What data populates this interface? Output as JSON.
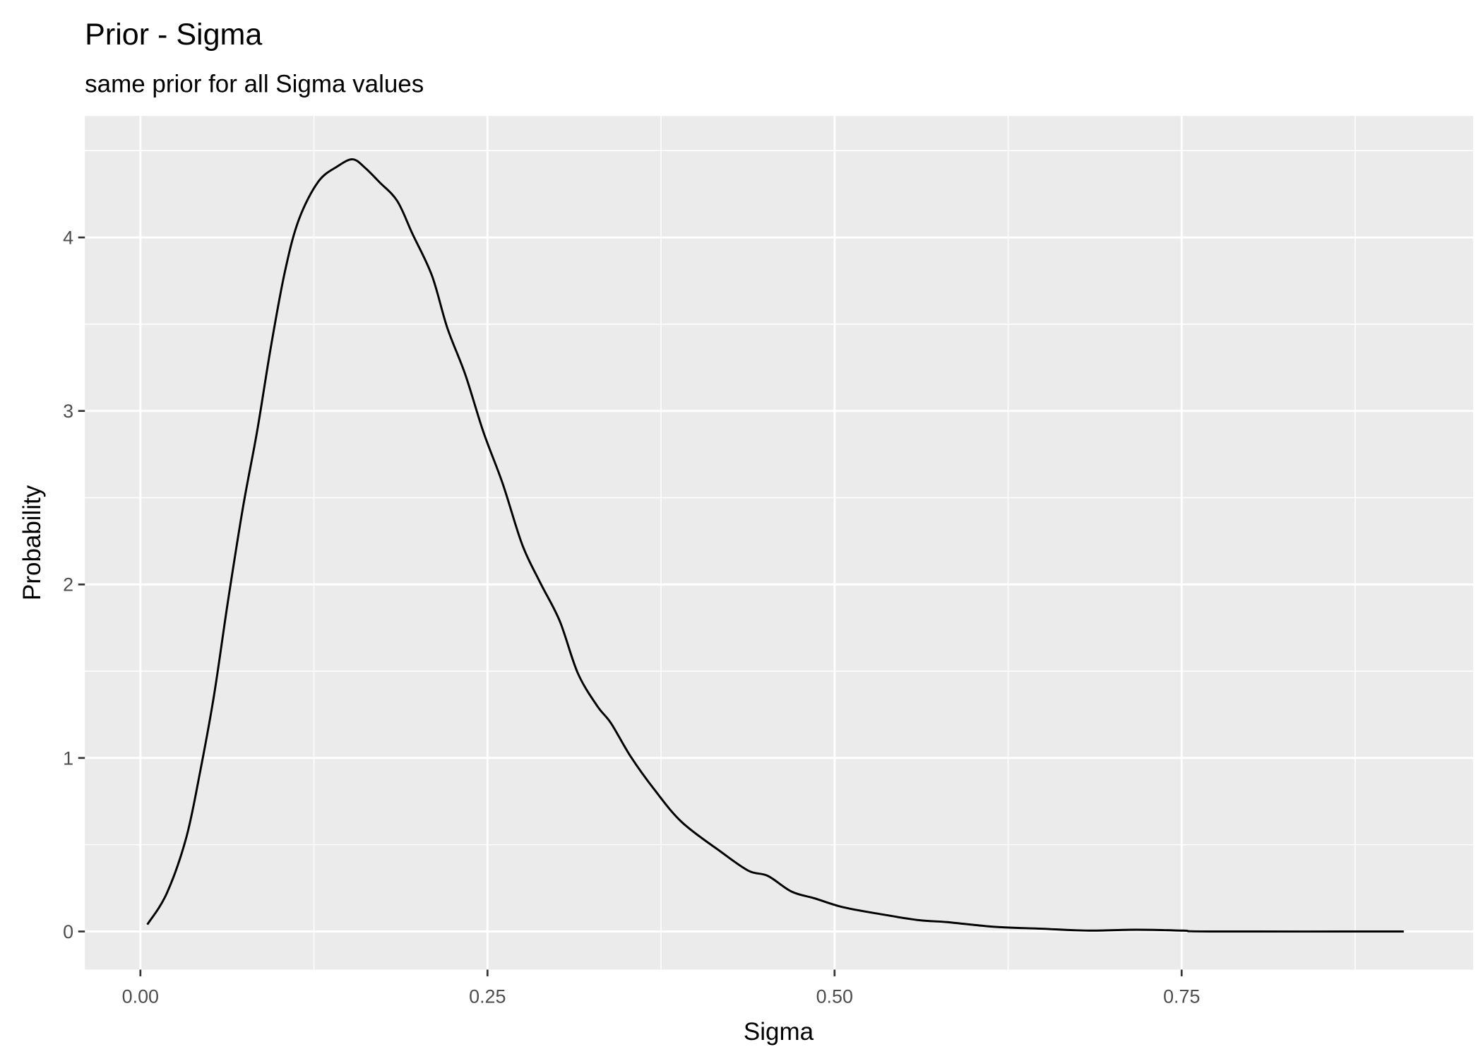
{
  "chart_data": {
    "type": "line",
    "title": "Prior - Sigma",
    "subtitle": "same prior for all Sigma values",
    "xlabel": "Sigma",
    "ylabel": "Probability",
    "xlim": [
      -0.04,
      0.96
    ],
    "ylim": [
      -0.22,
      4.7
    ],
    "x_ticks": [
      0,
      0.25,
      0.5,
      0.75
    ],
    "x_tick_labels": [
      "0.00",
      "0.25",
      "0.50",
      "0.75"
    ],
    "y_ticks": [
      0,
      1,
      2,
      3,
      4
    ],
    "y_tick_labels": [
      "0",
      "1",
      "2",
      "3",
      "4"
    ],
    "grid": true,
    "colors": {
      "panel": "#ebebeb",
      "grid": "#ffffff",
      "line": "#000000"
    },
    "series": [
      {
        "x": [
          0.005,
          0.019,
          0.033,
          0.043,
          0.053,
          0.063,
          0.074,
          0.084,
          0.094,
          0.104,
          0.114,
          0.128,
          0.142,
          0.153,
          0.162,
          0.172,
          0.185,
          0.196,
          0.21,
          0.221,
          0.234,
          0.247,
          0.261,
          0.275,
          0.288,
          0.302,
          0.315,
          0.329,
          0.339,
          0.353,
          0.37,
          0.39,
          0.418,
          0.438,
          0.452,
          0.469,
          0.486,
          0.506,
          0.533,
          0.561,
          0.581,
          0.615,
          0.649,
          0.683,
          0.717,
          0.751,
          0.771,
          0.91
        ],
        "y": [
          0.04,
          0.22,
          0.54,
          0.92,
          1.36,
          1.9,
          2.45,
          2.88,
          3.37,
          3.8,
          4.1,
          4.32,
          4.41,
          4.45,
          4.4,
          4.32,
          4.21,
          4.02,
          3.78,
          3.48,
          3.21,
          2.88,
          2.58,
          2.23,
          2.01,
          1.79,
          1.49,
          1.3,
          1.2,
          1.01,
          0.82,
          0.63,
          0.46,
          0.35,
          0.32,
          0.23,
          0.19,
          0.14,
          0.1,
          0.065,
          0.054,
          0.027,
          0.016,
          0.005,
          0.01,
          0.005,
          0,
          0
        ]
      }
    ]
  }
}
